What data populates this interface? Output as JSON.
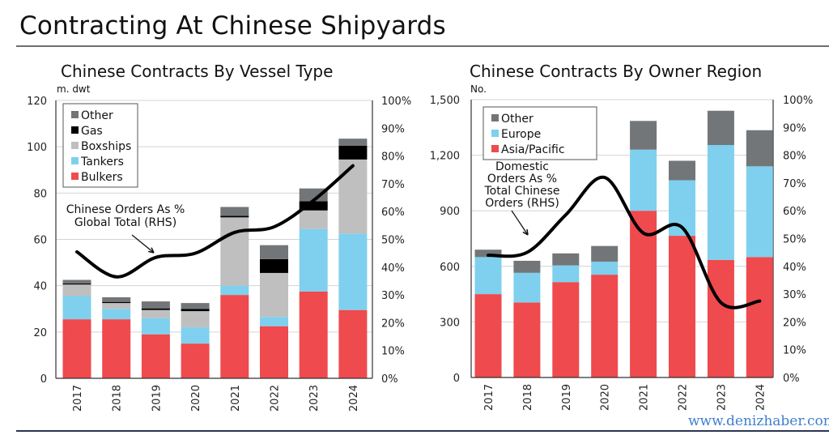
{
  "page": {
    "title": "Contracting At Chinese Shipyards",
    "watermark": "www.denizhaber.com"
  },
  "colors": {
    "Bulkers": "#ef4a4d",
    "Tankers": "#7fd0ee",
    "Boxships": "#bfbfbf",
    "Gas": "#000000",
    "Other": "#737679",
    "Asia/Pacific": "#ef4a4d",
    "Europe": "#7fd0ee",
    "line": "#000000"
  },
  "chart_data": [
    {
      "type": "bar",
      "stacked": true,
      "title": "Chinese Contracts By Vessel Type",
      "ylabel": "m. dwt",
      "categories": [
        "2017",
        "2018",
        "2019",
        "2020",
        "2021",
        "2022",
        "2023",
        "2024"
      ],
      "ylim": [
        0,
        120
      ],
      "yticks": [
        "0",
        "20",
        "40",
        "60",
        "80",
        "100",
        "120"
      ],
      "y2lim": [
        0,
        100
      ],
      "y2ticks": [
        "0%",
        "10%",
        "20%",
        "30%",
        "40%",
        "50%",
        "60%",
        "70%",
        "80%",
        "90%",
        "100%"
      ],
      "grid": true,
      "legend_placement": "top-left",
      "legend_order": [
        "Other",
        "Gas",
        "Boxships",
        "Tankers",
        "Bulkers"
      ],
      "series": [
        {
          "name": "Bulkers",
          "values": [
            25.5,
            25.5,
            19,
            15,
            36,
            22.5,
            37.5,
            29.5
          ]
        },
        {
          "name": "Tankers",
          "values": [
            10,
            4.5,
            7,
            7,
            4,
            4,
            27,
            33
          ]
        },
        {
          "name": "Boxships",
          "values": [
            5,
            2.5,
            3.5,
            7,
            29.5,
            19,
            8,
            32
          ]
        },
        {
          "name": "Gas",
          "values": [
            0.5,
            0.5,
            0.7,
            1,
            0.7,
            6,
            4,
            6
          ]
        },
        {
          "name": "Other",
          "values": [
            1.5,
            2,
            3,
            2.5,
            3.8,
            6,
            5.5,
            3
          ]
        }
      ],
      "line": {
        "axis": "right",
        "values": [
          45.5,
          36.5,
          43.5,
          45,
          52.5,
          54.5,
          64,
          76.5
        ]
      },
      "annotation": [
        "Chinese Orders As %",
        "Global Total (RHS)"
      ]
    },
    {
      "type": "bar",
      "stacked": true,
      "title": "Chinese Contracts By Owner Region",
      "ylabel": "No.",
      "categories": [
        "2017",
        "2018",
        "2019",
        "2020",
        "2021",
        "2022",
        "2023",
        "2024"
      ],
      "ylim": [
        0,
        1500
      ],
      "yticks": [
        "0",
        "300",
        "600",
        "900",
        "1,200",
        "1,500"
      ],
      "y2lim": [
        0,
        100
      ],
      "y2ticks": [
        "0%",
        "10%",
        "20%",
        "30%",
        "40%",
        "50%",
        "60%",
        "70%",
        "80%",
        "90%",
        "100%"
      ],
      "grid": true,
      "legend_placement": "top-left",
      "legend_order": [
        "Other",
        "Europe",
        "Asia/Pacific"
      ],
      "series": [
        {
          "name": "Asia/Pacific",
          "values": [
            450,
            405,
            515,
            555,
            900,
            765,
            635,
            650
          ]
        },
        {
          "name": "Europe",
          "values": [
            200,
            160,
            90,
            70,
            330,
            300,
            620,
            490
          ]
        },
        {
          "name": "Other",
          "values": [
            40,
            65,
            65,
            85,
            155,
            105,
            185,
            195
          ]
        }
      ],
      "line": {
        "axis": "right",
        "values": [
          44,
          45,
          58.5,
          72,
          52,
          54,
          27,
          27.5
        ]
      },
      "annotation": [
        "Domestic",
        "Orders As %",
        "Total Chinese",
        "Orders (RHS)"
      ]
    }
  ]
}
